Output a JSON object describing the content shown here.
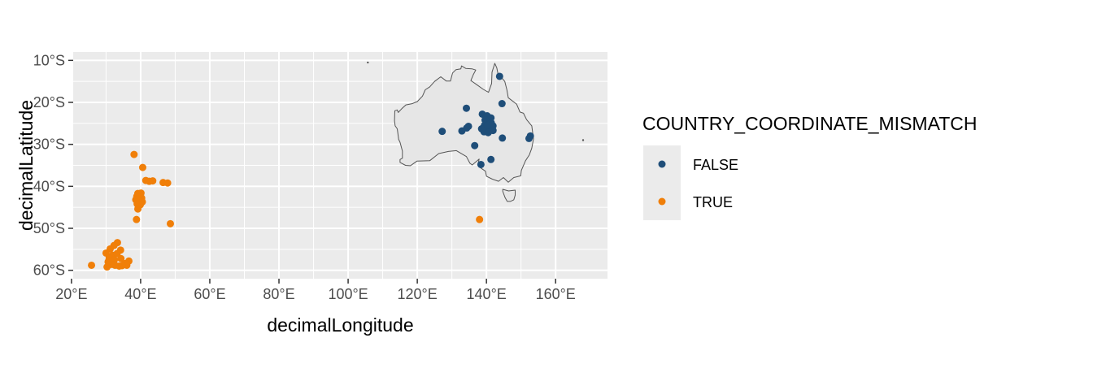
{
  "chart_data": {
    "type": "scatter",
    "title": "",
    "xlabel": "decimalLongitude",
    "ylabel": "decimalLatitude",
    "xlim": [
      20.5,
      175
    ],
    "ylim": [
      -62,
      -8
    ],
    "x_ticks": [
      {
        "value": 20,
        "label": "20°E"
      },
      {
        "value": 40,
        "label": "40°E"
      },
      {
        "value": 60,
        "label": "60°E"
      },
      {
        "value": 80,
        "label": "80°E"
      },
      {
        "value": 100,
        "label": "100°E"
      },
      {
        "value": 120,
        "label": "120°E"
      },
      {
        "value": 140,
        "label": "140°E"
      },
      {
        "value": 160,
        "label": "160°E"
      }
    ],
    "y_ticks": [
      {
        "value": -10,
        "label": "10°S"
      },
      {
        "value": -20,
        "label": "20°S"
      },
      {
        "value": -30,
        "label": "30°S"
      },
      {
        "value": -40,
        "label": "40°S"
      },
      {
        "value": -50,
        "label": "50°S"
      },
      {
        "value": -60,
        "label": "60°S"
      }
    ],
    "grid": true,
    "panel_background": "#ebebeb",
    "grid_color": "#ffffff",
    "legend": {
      "title": "COUNTRY_COORDINATE_MISMATCH",
      "placement": "right",
      "entries": [
        {
          "label": "FALSE",
          "color": "#1f4e79"
        },
        {
          "label": "TRUE",
          "color": "#f07f09"
        }
      ]
    },
    "outline_color": "#555555",
    "land_fill": "#e6e6e6",
    "australia_outline": [
      [
        113.5,
        -22.0
      ],
      [
        114.2,
        -21.8
      ],
      [
        114.5,
        -22.4
      ],
      [
        115.5,
        -21.5
      ],
      [
        116.7,
        -20.6
      ],
      [
        118.5,
        -20.3
      ],
      [
        120.0,
        -19.8
      ],
      [
        121.5,
        -18.5
      ],
      [
        122.3,
        -17.0
      ],
      [
        123.6,
        -16.3
      ],
      [
        125.0,
        -15.0
      ],
      [
        126.8,
        -13.9
      ],
      [
        128.4,
        -14.9
      ],
      [
        129.6,
        -14.9
      ],
      [
        130.2,
        -13.0
      ],
      [
        131.2,
        -12.2
      ],
      [
        132.6,
        -12.0
      ],
      [
        132.8,
        -11.3
      ],
      [
        134.0,
        -11.9
      ],
      [
        135.8,
        -12.0
      ],
      [
        136.9,
        -12.3
      ],
      [
        136.2,
        -13.4
      ],
      [
        135.5,
        -14.8
      ],
      [
        137.4,
        -15.9
      ],
      [
        139.1,
        -16.9
      ],
      [
        140.6,
        -17.6
      ],
      [
        141.5,
        -15.5
      ],
      [
        141.6,
        -12.8
      ],
      [
        142.4,
        -10.7
      ],
      [
        143.0,
        -11.8
      ],
      [
        143.5,
        -13.8
      ],
      [
        144.6,
        -14.3
      ],
      [
        145.3,
        -15.0
      ],
      [
        145.9,
        -17.0
      ],
      [
        146.3,
        -18.9
      ],
      [
        148.7,
        -20.4
      ],
      [
        149.7,
        -22.3
      ],
      [
        150.7,
        -22.6
      ],
      [
        151.6,
        -24.1
      ],
      [
        153.1,
        -25.6
      ],
      [
        153.6,
        -28.7
      ],
      [
        153.1,
        -30.9
      ],
      [
        152.4,
        -32.5
      ],
      [
        151.3,
        -33.9
      ],
      [
        150.1,
        -36.2
      ],
      [
        149.9,
        -37.5
      ],
      [
        147.9,
        -37.9
      ],
      [
        146.3,
        -39.0
      ],
      [
        144.9,
        -37.9
      ],
      [
        143.5,
        -38.8
      ],
      [
        141.7,
        -38.3
      ],
      [
        140.0,
        -37.6
      ],
      [
        139.7,
        -36.4
      ],
      [
        138.3,
        -35.6
      ],
      [
        138.4,
        -34.3
      ],
      [
        137.5,
        -34.9
      ],
      [
        137.9,
        -33.5
      ],
      [
        135.9,
        -34.9
      ],
      [
        135.2,
        -34.5
      ],
      [
        134.2,
        -32.9
      ],
      [
        131.3,
        -31.5
      ],
      [
        129.0,
        -31.7
      ],
      [
        126.2,
        -32.2
      ],
      [
        123.6,
        -33.9
      ],
      [
        119.9,
        -34.0
      ],
      [
        118.0,
        -35.1
      ],
      [
        116.6,
        -35.0
      ],
      [
        115.0,
        -34.3
      ],
      [
        115.0,
        -33.6
      ],
      [
        115.7,
        -33.3
      ],
      [
        115.7,
        -31.6
      ],
      [
        115.0,
        -29.5
      ],
      [
        114.6,
        -28.8
      ],
      [
        114.2,
        -26.3
      ],
      [
        113.6,
        -25.6
      ],
      [
        113.4,
        -24.4
      ],
      [
        113.5,
        -22.0
      ]
    ],
    "tasmania_outline": [
      [
        144.7,
        -40.7
      ],
      [
        146.4,
        -41.1
      ],
      [
        148.3,
        -40.9
      ],
      [
        148.3,
        -42.1
      ],
      [
        147.9,
        -43.2
      ],
      [
        146.9,
        -43.6
      ],
      [
        146.0,
        -43.6
      ],
      [
        145.4,
        -42.7
      ],
      [
        144.7,
        -41.2
      ],
      [
        144.7,
        -40.7
      ]
    ],
    "small_islands": [
      [
        105.7,
        -10.5
      ],
      [
        167.95,
        -29.0
      ]
    ],
    "series": [
      {
        "name": "FALSE",
        "color": "#1f4e79",
        "points": [
          [
            143.8,
            -13.8
          ],
          [
            144.5,
            -20.3
          ],
          [
            134.2,
            -21.4
          ],
          [
            138.8,
            -22.8
          ],
          [
            140.2,
            -23.2
          ],
          [
            140.8,
            -24.0
          ],
          [
            141.3,
            -23.7
          ],
          [
            139.6,
            -24.2
          ],
          [
            140.2,
            -24.8
          ],
          [
            140.9,
            -25.0
          ],
          [
            141.4,
            -24.9
          ],
          [
            141.9,
            -25.6
          ],
          [
            139.4,
            -25.5
          ],
          [
            140.0,
            -25.9
          ],
          [
            140.6,
            -26.2
          ],
          [
            141.2,
            -26.4
          ],
          [
            141.9,
            -26.7
          ],
          [
            134.8,
            -25.7
          ],
          [
            134.3,
            -26.1
          ],
          [
            138.6,
            -26.3
          ],
          [
            139.3,
            -27.0
          ],
          [
            140.5,
            -27.2
          ],
          [
            132.9,
            -26.8
          ],
          [
            127.2,
            -26.9
          ],
          [
            144.6,
            -28.5
          ],
          [
            152.7,
            -28.0
          ],
          [
            152.3,
            -28.6
          ],
          [
            136.6,
            -30.3
          ],
          [
            141.3,
            -33.6
          ],
          [
            138.4,
            -34.8
          ],
          [
            141.5,
            -25.3
          ],
          [
            140.3,
            -25.5
          ]
        ]
      },
      {
        "name": "TRUE",
        "color": "#f07f09",
        "points": [
          [
            38.1,
            -32.4
          ],
          [
            40.6,
            -35.5
          ],
          [
            41.5,
            -38.6
          ],
          [
            42.5,
            -38.8
          ],
          [
            43.5,
            -38.7
          ],
          [
            46.5,
            -39.1
          ],
          [
            47.8,
            -39.2
          ],
          [
            39.2,
            -41.7
          ],
          [
            40.1,
            -41.6
          ],
          [
            38.9,
            -42.4
          ],
          [
            39.6,
            -42.6
          ],
          [
            40.3,
            -42.8
          ],
          [
            38.6,
            -43.2
          ],
          [
            39.5,
            -43.5
          ],
          [
            40.5,
            -43.7
          ],
          [
            39.0,
            -44.2
          ],
          [
            39.9,
            -44.4
          ],
          [
            39.2,
            -45.4
          ],
          [
            38.8,
            -47.9
          ],
          [
            48.6,
            -48.9
          ],
          [
            33.3,
            -53.4
          ],
          [
            32.3,
            -54.1
          ],
          [
            31.2,
            -54.9
          ],
          [
            34.2,
            -55.2
          ],
          [
            30.0,
            -55.9
          ],
          [
            31.9,
            -56.4
          ],
          [
            33.2,
            -56.0
          ],
          [
            30.9,
            -57.1
          ],
          [
            32.4,
            -57.5
          ],
          [
            34.3,
            -57.2
          ],
          [
            36.6,
            -57.8
          ],
          [
            35.5,
            -58.4
          ],
          [
            36.0,
            -58.8
          ],
          [
            34.6,
            -58.9
          ],
          [
            33.8,
            -59.0
          ],
          [
            32.6,
            -58.8
          ],
          [
            31.5,
            -58.6
          ],
          [
            30.3,
            -59.2
          ],
          [
            25.8,
            -58.8
          ],
          [
            30.6,
            -58.0
          ]
        ]
      }
    ],
    "extra_points": [
      {
        "series": "TRUE",
        "x": 138.0,
        "y": -47.9
      }
    ]
  }
}
